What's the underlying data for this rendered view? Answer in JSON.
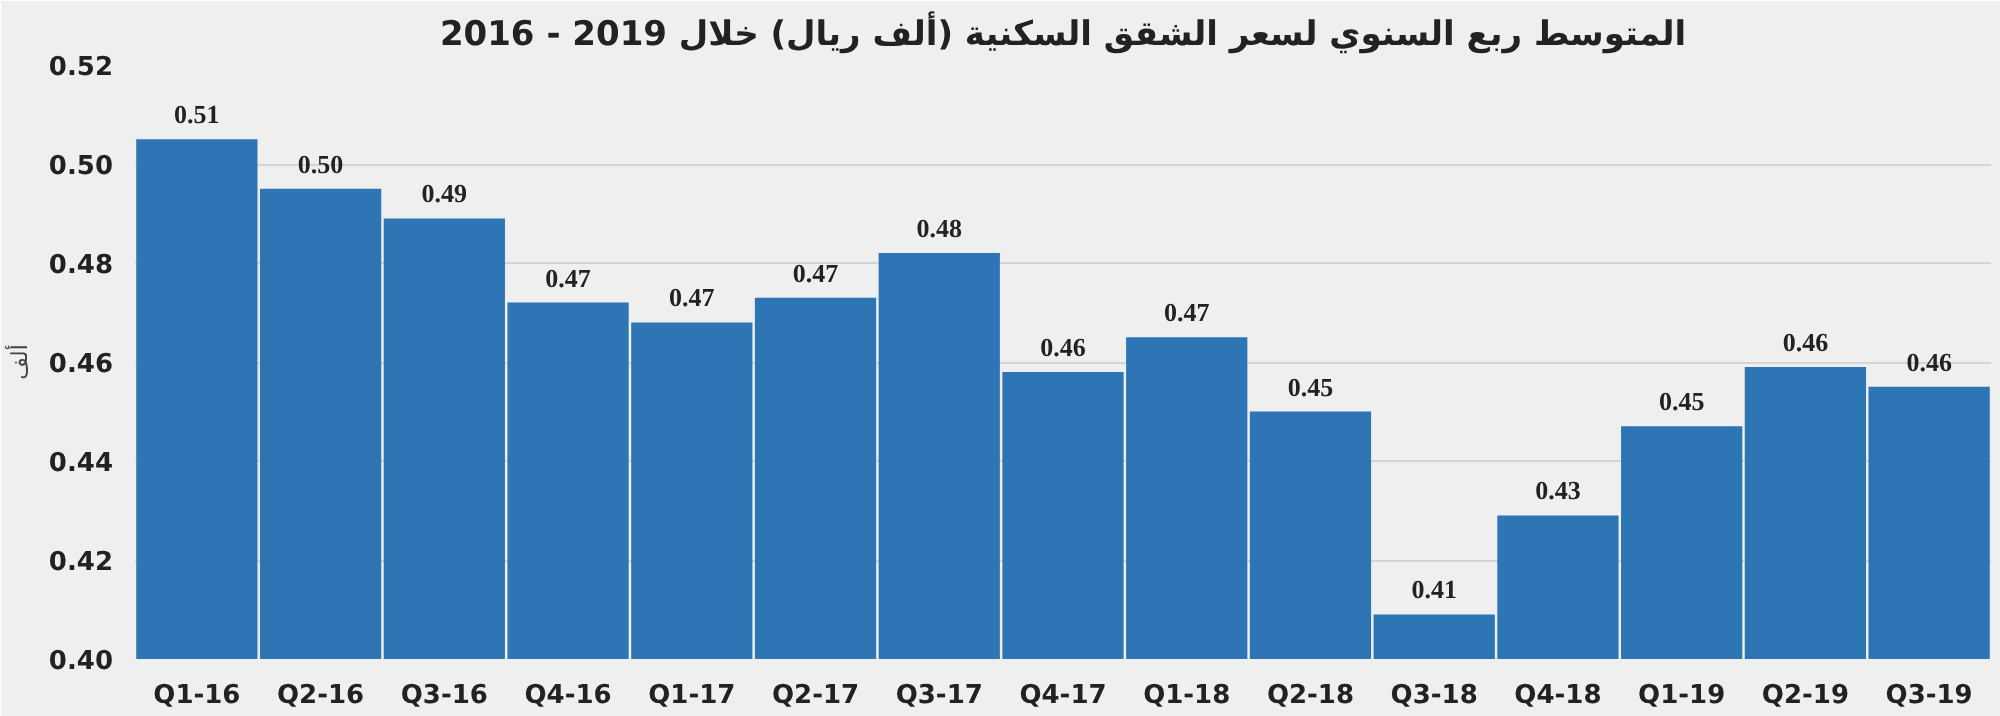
{
  "chart_data": {
    "type": "bar",
    "title": "المتوسط ربع السنوي لسعر الشقق السكنية (ألف ريال) خلال 2019 - 2016",
    "ylabel": "ألف",
    "categories": [
      "Q1-16",
      "Q2-16",
      "Q3-16",
      "Q4-16",
      "Q1-17",
      "Q2-17",
      "Q3-17",
      "Q4-17",
      "Q1-18",
      "Q2-18",
      "Q3-18",
      "Q4-18",
      "Q1-19",
      "Q2-19",
      "Q3-19"
    ],
    "values": [
      0.505,
      0.495,
      0.489,
      0.472,
      0.468,
      0.473,
      0.482,
      0.458,
      0.465,
      0.45,
      0.409,
      0.429,
      0.447,
      0.459,
      0.455
    ],
    "value_labels": [
      "0.51",
      "0.50",
      "0.49",
      "0.47",
      "0.47",
      "0.47",
      "0.48",
      "0.46",
      "0.47",
      "0.45",
      "0.41",
      "0.43",
      "0.45",
      "0.46",
      "0.46"
    ],
    "color": "#2e75b6",
    "ylim": [
      0.4,
      0.52
    ],
    "yticks": [
      {
        "value": 0.4,
        "label": "0.40"
      },
      {
        "value": 0.42,
        "label": "0.42"
      },
      {
        "value": 0.44,
        "label": "0.44"
      },
      {
        "value": 0.46,
        "label": "0.46"
      },
      {
        "value": 0.48,
        "label": "0.48"
      },
      {
        "value": 0.5,
        "label": "0.50"
      },
      {
        "value": 0.52,
        "label": "0.52"
      }
    ],
    "grid": "y"
  }
}
